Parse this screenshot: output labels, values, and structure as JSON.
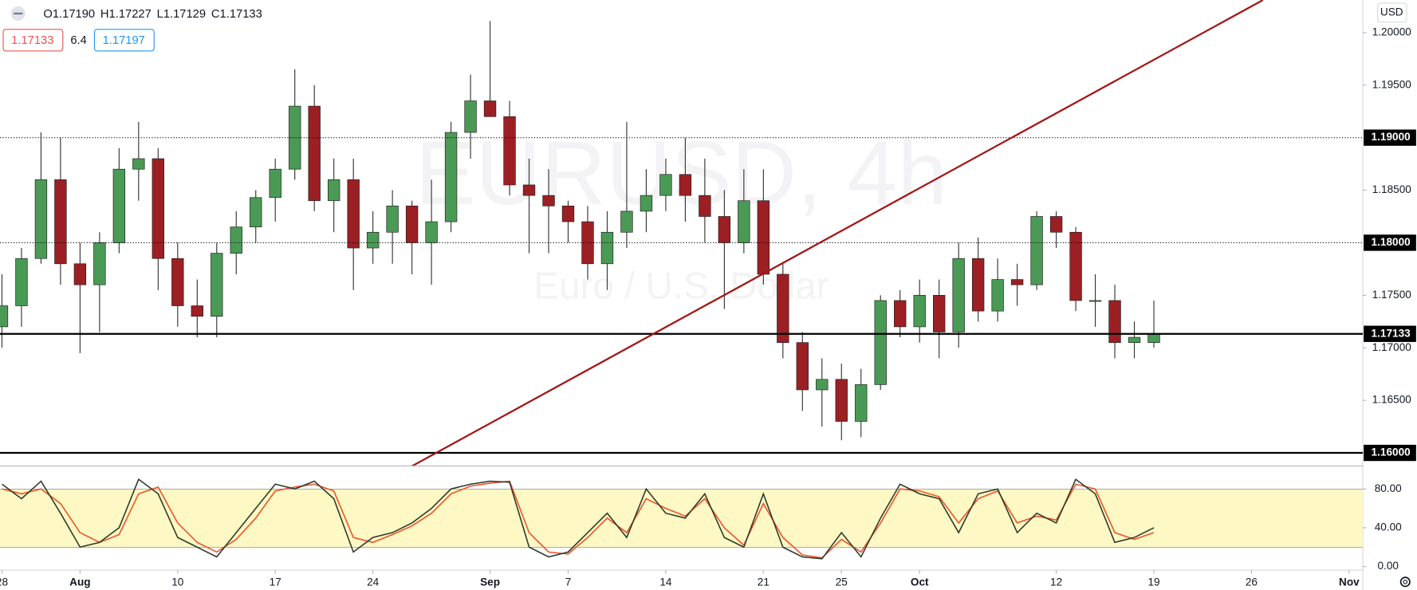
{
  "header": {
    "ohlc": [
      {
        "label": "O",
        "value": "1.17190"
      },
      {
        "label": "H",
        "value": "1.17227"
      },
      {
        "label": "L",
        "value": "1.17129"
      },
      {
        "label": "C",
        "value": "1.17133"
      }
    ],
    "bid": "1.17133",
    "spread": "6.4",
    "ask": "1.17197",
    "currency": "USD",
    "watermark": "EURUSD, 4h",
    "watermark_sub": "Euro / U.S. Dollar"
  },
  "chart_data": [
    {
      "type": "candlestick",
      "up_color": "#4a9a55",
      "down_color": "#9c1f24",
      "x": [
        0,
        1,
        2,
        3,
        4,
        5,
        6,
        7,
        8,
        9,
        10,
        11,
        12,
        13,
        14,
        15,
        16,
        17,
        18,
        19,
        20,
        21,
        22,
        23,
        24,
        25,
        26,
        27,
        28,
        29,
        30,
        31,
        32,
        33,
        34,
        35,
        36,
        37,
        38,
        39,
        40,
        41,
        42,
        43,
        44,
        45,
        46,
        47,
        48,
        49,
        50,
        51,
        52,
        53,
        54,
        55,
        56,
        57,
        58,
        59
      ],
      "candles": [
        [
          1.172,
          1.177,
          1.17,
          1.174
        ],
        [
          1.174,
          1.1795,
          1.172,
          1.1785
        ],
        [
          1.1785,
          1.1905,
          1.178,
          1.186
        ],
        [
          1.186,
          1.19,
          1.176,
          1.178
        ],
        [
          1.178,
          1.18,
          1.1695,
          1.176
        ],
        [
          1.176,
          1.181,
          1.1715,
          1.18
        ],
        [
          1.18,
          1.189,
          1.179,
          1.187
        ],
        [
          1.187,
          1.1915,
          1.184,
          1.188
        ],
        [
          1.188,
          1.189,
          1.1755,
          1.1785
        ],
        [
          1.1785,
          1.18,
          1.172,
          1.174
        ],
        [
          1.174,
          1.1765,
          1.171,
          1.173
        ],
        [
          1.173,
          1.18,
          1.171,
          1.179
        ],
        [
          1.179,
          1.183,
          1.177,
          1.1815
        ],
        [
          1.1815,
          1.185,
          1.18,
          1.1843
        ],
        [
          1.1843,
          1.188,
          1.182,
          1.187
        ],
        [
          1.187,
          1.1965,
          1.186,
          1.193
        ],
        [
          1.193,
          1.195,
          1.183,
          1.184
        ],
        [
          1.184,
          1.188,
          1.181,
          1.186
        ],
        [
          1.186,
          1.188,
          1.1755,
          1.1795
        ],
        [
          1.1795,
          1.183,
          1.178,
          1.181
        ],
        [
          1.181,
          1.185,
          1.178,
          1.1835
        ],
        [
          1.1835,
          1.184,
          1.177,
          1.18
        ],
        [
          1.18,
          1.186,
          1.176,
          1.182
        ],
        [
          1.182,
          1.1915,
          1.181,
          1.1905
        ],
        [
          1.1905,
          1.196,
          1.188,
          1.1935
        ],
        [
          1.1935,
          1.2011,
          1.192,
          1.192
        ],
        [
          1.192,
          1.1935,
          1.1845,
          1.1855
        ],
        [
          1.1855,
          1.188,
          1.179,
          1.1845
        ],
        [
          1.1845,
          1.187,
          1.179,
          1.1835
        ],
        [
          1.1835,
          1.184,
          1.18,
          1.182
        ],
        [
          1.182,
          1.1835,
          1.1765,
          1.178
        ],
        [
          1.178,
          1.183,
          1.1755,
          1.181
        ],
        [
          1.181,
          1.1915,
          1.1795,
          1.183
        ],
        [
          1.183,
          1.187,
          1.181,
          1.1845
        ],
        [
          1.1845,
          1.188,
          1.183,
          1.1865
        ],
        [
          1.1865,
          1.19,
          1.182,
          1.1845
        ],
        [
          1.1845,
          1.188,
          1.18,
          1.1825
        ],
        [
          1.1825,
          1.185,
          1.1737,
          1.18
        ],
        [
          1.18,
          1.187,
          1.179,
          1.184
        ],
        [
          1.184,
          1.187,
          1.176,
          1.177
        ],
        [
          1.177,
          1.178,
          1.169,
          1.1705
        ],
        [
          1.1705,
          1.1715,
          1.164,
          1.166
        ],
        [
          1.166,
          1.169,
          1.1625,
          1.167
        ],
        [
          1.167,
          1.1685,
          1.1612,
          1.163
        ],
        [
          1.163,
          1.168,
          1.1615,
          1.1665
        ],
        [
          1.1665,
          1.175,
          1.166,
          1.1745
        ],
        [
          1.1745,
          1.1755,
          1.171,
          1.172
        ],
        [
          1.172,
          1.1765,
          1.1705,
          1.175
        ],
        [
          1.175,
          1.1765,
          1.169,
          1.1715
        ],
        [
          1.1715,
          1.18,
          1.17,
          1.1785
        ],
        [
          1.1785,
          1.1805,
          1.1725,
          1.1735
        ],
        [
          1.1735,
          1.1785,
          1.1725,
          1.1765
        ],
        [
          1.1765,
          1.178,
          1.174,
          1.176
        ],
        [
          1.176,
          1.183,
          1.1755,
          1.1825
        ],
        [
          1.1825,
          1.183,
          1.1795,
          1.181
        ],
        [
          1.181,
          1.1815,
          1.1735,
          1.1745
        ],
        [
          1.1745,
          1.177,
          1.172,
          1.1745
        ],
        [
          1.1745,
          1.176,
          1.169,
          1.1705
        ],
        [
          1.1705,
          1.1725,
          1.169,
          1.171
        ],
        [
          1.1705,
          1.1745,
          1.17,
          1.17133
        ]
      ],
      "xlim": [
        -0.1,
        69.7
      ],
      "xticks": [
        {
          "value": 0,
          "label": "28"
        },
        {
          "value": 4,
          "label": "Aug"
        },
        {
          "value": 9,
          "label": "10"
        },
        {
          "value": 14,
          "label": "17"
        },
        {
          "value": 19,
          "label": "24"
        },
        {
          "value": 25,
          "label": "Sep"
        },
        {
          "value": 29,
          "label": "7"
        },
        {
          "value": 34,
          "label": "14"
        },
        {
          "value": 39,
          "label": "21"
        },
        {
          "value": 43,
          "label": "25"
        },
        {
          "value": 47,
          "label": "Oct"
        },
        {
          "value": 54,
          "label": "12"
        },
        {
          "value": 59,
          "label": "19"
        },
        {
          "value": 64,
          "label": "26"
        },
        {
          "value": 69,
          "label": "Nov"
        }
      ],
      "ylim": [
        1.1588,
        1.2031
      ],
      "yticks": [
        {
          "value": 1.165,
          "label": "1.16500"
        },
        {
          "value": 1.17,
          "label": "1.17000"
        },
        {
          "value": 1.175,
          "label": "1.17500"
        },
        {
          "value": 1.185,
          "label": "1.18500"
        },
        {
          "value": 1.195,
          "label": "1.19500"
        },
        {
          "value": 1.2,
          "label": "1.20000"
        }
      ],
      "levels": [
        {
          "value": 1.19,
          "label": "1.19000",
          "style": "dotted"
        },
        {
          "value": 1.18,
          "label": "1.18000",
          "style": "dotted"
        },
        {
          "value": 1.17133,
          "label": "1.17133",
          "style": "solid"
        },
        {
          "value": 1.16,
          "label": "1.16000",
          "style": "solid"
        }
      ],
      "trendline": {
        "x": [
          20.97,
          64.58
        ],
        "y": [
          1.15871,
          1.20309
        ],
        "color": "#a31515"
      }
    },
    {
      "type": "line",
      "band": [
        20,
        80
      ],
      "band_color": "#fdf8c4",
      "ylim": [
        -3.7,
        103.3
      ],
      "yticks": [
        {
          "value": 0,
          "label": "0.00"
        },
        {
          "value": 40,
          "label": "40.00"
        },
        {
          "value": 80,
          "label": "80.00"
        }
      ],
      "series": [
        {
          "color": "#2f3a2a",
          "values": [
            85,
            70,
            88,
            55,
            20,
            25,
            40,
            90,
            75,
            30,
            20,
            10,
            35,
            60,
            85,
            80,
            88,
            70,
            15,
            30,
            35,
            45,
            60,
            80,
            85,
            88,
            87,
            20,
            10,
            15,
            35,
            55,
            30,
            80,
            55,
            50,
            75,
            30,
            20,
            75,
            20,
            10,
            8,
            35,
            10,
            50,
            85,
            75,
            70,
            35,
            75,
            80,
            35,
            55,
            45,
            90,
            75,
            25,
            30,
            40
          ]
        },
        {
          "color": "#f0522a",
          "values": [
            80,
            75,
            80,
            65,
            35,
            25,
            33,
            75,
            82,
            45,
            25,
            15,
            28,
            50,
            78,
            82,
            85,
            78,
            30,
            25,
            33,
            42,
            55,
            75,
            83,
            86,
            88,
            35,
            15,
            13,
            30,
            50,
            35,
            70,
            60,
            52,
            70,
            40,
            22,
            65,
            30,
            12,
            9,
            28,
            15,
            45,
            80,
            78,
            72,
            45,
            70,
            78,
            45,
            52,
            48,
            85,
            80,
            35,
            28,
            35
          ]
        }
      ]
    }
  ]
}
